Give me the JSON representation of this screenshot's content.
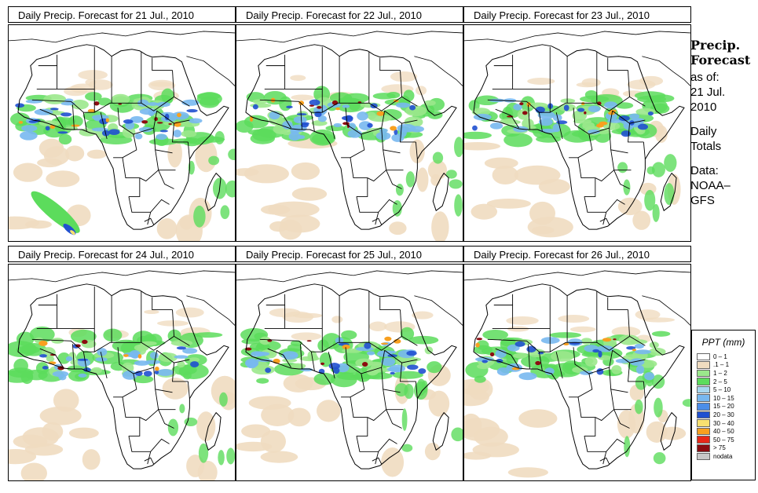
{
  "panels": [
    {
      "title": "Daily Precip. Forecast for  21 Jul., 2010",
      "intensity": 1.0
    },
    {
      "title": "Daily Precip. Forecast for  22 Jul., 2010",
      "intensity": 0.95
    },
    {
      "title": "Daily Precip. Forecast for  23 Jul., 2010",
      "intensity": 0.8
    },
    {
      "title": "Daily Precip. Forecast for  24 Jul., 2010",
      "intensity": 0.7
    },
    {
      "title": "Daily Precip. Forecast for  25 Jul., 2010",
      "intensity": 0.75
    },
    {
      "title": "Daily Precip. Forecast for  26 Jul., 2010",
      "intensity": 0.7
    }
  ],
  "info": {
    "heading_line1": "Precip.",
    "heading_line2": "Forecast",
    "asof_label": "as of:",
    "asof_date_line1": "21 Jul.",
    "asof_date_line2": "2010",
    "totals_line1": "Daily",
    "totals_line2": "Totals",
    "data_line1": "Data:",
    "data_line2": "NOAA–",
    "data_line3": "GFS"
  },
  "legend": {
    "title": "PPT (mm)",
    "items": [
      {
        "label": "0 – 1",
        "color": "#ffffff"
      },
      {
        "label": ".1 – 1",
        "color": "#f0dcc0"
      },
      {
        "label": "1 – 2",
        "color": "#9be88c"
      },
      {
        "label": "2 – 5",
        "color": "#5cdc5c"
      },
      {
        "label": "5 – 10",
        "color": "#a8d8f0"
      },
      {
        "label": "10 – 15",
        "color": "#78b8f0"
      },
      {
        "label": "15 – 20",
        "color": "#4c8ee8"
      },
      {
        "label": "20 – 30",
        "color": "#2050d0"
      },
      {
        "label": "30 – 40",
        "color": "#f8e070"
      },
      {
        "label": "40 – 50",
        "color": "#f8a020"
      },
      {
        "label": "50 – 75",
        "color": "#e82818"
      },
      {
        "label": "> 75",
        "color": "#8c0c10"
      },
      {
        "label": "nodata",
        "color": "#c8c8c8"
      }
    ]
  }
}
